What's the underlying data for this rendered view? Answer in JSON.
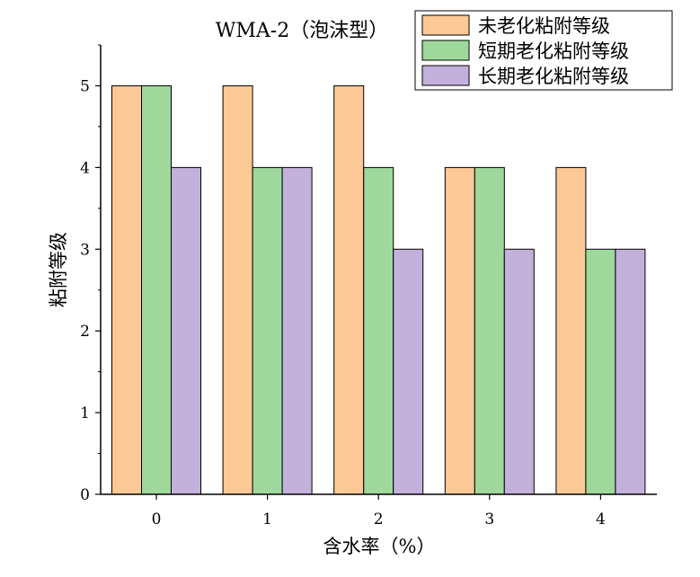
{
  "chart_data": {
    "type": "bar",
    "title": "WMA-2（泡沫型）",
    "xlabel": "含水率（%）",
    "ylabel": "粘附等级",
    "categories": [
      "0",
      "1",
      "2",
      "3",
      "4"
    ],
    "ylim": [
      0,
      5.5
    ],
    "yticks": [
      0,
      1,
      2,
      3,
      4,
      5
    ],
    "grid": false,
    "legend_position": "top-right",
    "series": [
      {
        "name": "未老化粘附等级",
        "color": "#FCC996",
        "values": [
          5,
          5,
          5,
          4,
          4
        ]
      },
      {
        "name": "短期老化粘附等级",
        "color": "#9ED89A",
        "values": [
          5,
          4,
          4,
          4,
          3
        ]
      },
      {
        "name": "长期老化粘附等级",
        "color": "#C2B1DA",
        "values": [
          4,
          4,
          3,
          3,
          3
        ]
      }
    ]
  }
}
